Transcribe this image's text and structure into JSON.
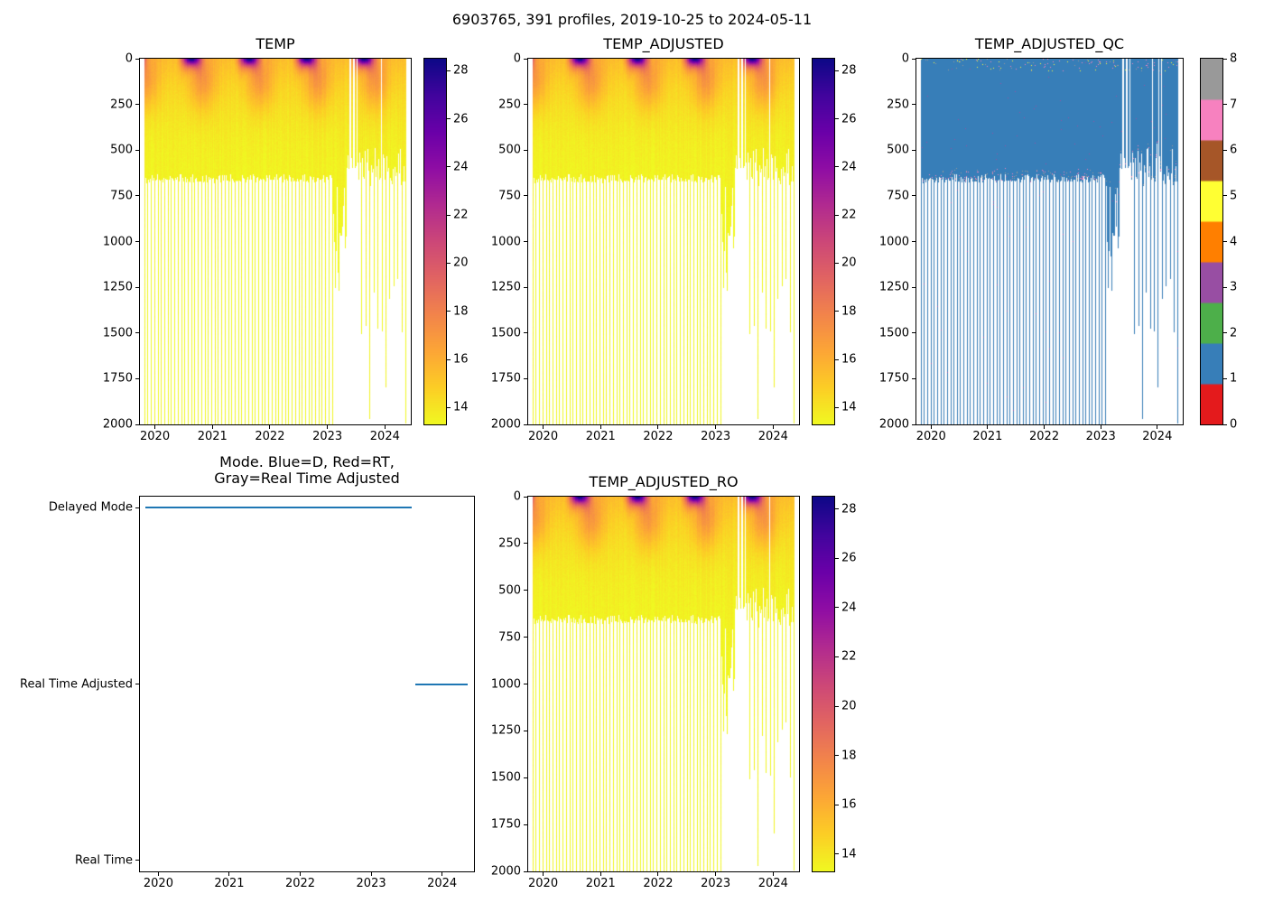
{
  "figure": {
    "title": "6903765, 391 profiles, 2019-10-25 to 2024-05-11",
    "background": "#ffffff",
    "float_id": "6903765",
    "n_profiles": 391,
    "date_start": "2019-10-25",
    "date_end": "2024-05-11"
  },
  "colormap": {
    "name": "plasma_reversed",
    "stops": [
      [
        0.0,
        "#0d0887"
      ],
      [
        0.1,
        "#41049d"
      ],
      [
        0.2,
        "#6a00a8"
      ],
      [
        0.3,
        "#8f0da4"
      ],
      [
        0.4,
        "#b12a90"
      ],
      [
        0.5,
        "#cc4778"
      ],
      [
        0.6,
        "#e16462"
      ],
      [
        0.7,
        "#f2844b"
      ],
      [
        0.8,
        "#fca636"
      ],
      [
        0.9,
        "#fcce25"
      ],
      [
        1.0,
        "#f0f921"
      ]
    ]
  },
  "chart_data": [
    {
      "id": "temp",
      "type": "heatmap",
      "title": "TEMP",
      "xlim": [
        2019.74,
        2024.45
      ],
      "ylim": [
        2000,
        0
      ],
      "xticks": [
        2020,
        2021,
        2022,
        2023,
        2024
      ],
      "yticks": [
        0,
        250,
        500,
        750,
        1000,
        1250,
        1500,
        1750,
        2000
      ],
      "colorbar": {
        "vmin": 13.3,
        "vmax": 28.5,
        "ticks": [
          14,
          16,
          18,
          20,
          22,
          24,
          26,
          28
        ]
      },
      "n_profiles": 391,
      "time_start_decimal_year": 2019.815,
      "time_end_decimal_year": 2024.36,
      "field_summary": {
        "deep_temp_c": 13.3,
        "winter_surface_temp_c": 15.4,
        "summer_surface_temp_c": 28.5,
        "typical_profile_depth_m": 650,
        "deep_profile_depth_m": 2000,
        "deep_profile_every_n": 5,
        "ragged_deep_period_decimal_years": [
          2023.08,
          2023.33
        ],
        "sparse_period_decimal_years": [
          2023.33,
          2023.58
        ],
        "description": "Seasonal warm surface layer (dark purple ~25-28C in summer, top ~100m), orange 15-17C mid-layer, yellow ~13.5C below 300m; most profiles reach ~650m, every ~5th reaches 2000m; ragged deeper profiles and data gaps after early 2023."
      }
    },
    {
      "id": "temp_adjusted",
      "type": "heatmap",
      "title": "TEMP_ADJUSTED",
      "xlim": [
        2019.74,
        2024.45
      ],
      "ylim": [
        2000,
        0
      ],
      "xticks": [
        2020,
        2021,
        2022,
        2023,
        2024
      ],
      "yticks": [
        0,
        250,
        500,
        750,
        1000,
        1250,
        1500,
        1750,
        2000
      ],
      "colorbar": {
        "vmin": 13.3,
        "vmax": 28.5,
        "ticks": [
          14,
          16,
          18,
          20,
          22,
          24,
          26,
          28
        ]
      },
      "n_profiles": 391,
      "time_start_decimal_year": 2019.815,
      "time_end_decimal_year": 2024.36,
      "field_summary": {
        "description": "Visually identical to TEMP panel."
      }
    },
    {
      "id": "temp_adjusted_qc",
      "type": "heatmap",
      "title": "TEMP_ADJUSTED_QC",
      "xlim": [
        2019.74,
        2024.45
      ],
      "ylim": [
        2000,
        0
      ],
      "xticks": [
        2020,
        2021,
        2022,
        2023,
        2024
      ],
      "yticks": [
        0,
        250,
        500,
        750,
        1000,
        1250,
        1500,
        1750,
        2000
      ],
      "colorbar": {
        "vmin": 0,
        "vmax": 8,
        "ticks": [
          0,
          1,
          2,
          3,
          4,
          5,
          6,
          7,
          8
        ],
        "colors": [
          "#e41a1c",
          "#377eb8",
          "#4daf4a",
          "#984ea3",
          "#ff7f00",
          "#ffff33",
          "#a65628",
          "#f781bf",
          "#999999"
        ]
      },
      "dominant_qc_value": 1,
      "dominant_color": "#377eb8",
      "field_summary": {
        "description": "Nearly all samples QC flag 1 (blue); scattered other-flag specks near the surface and near ~650m profile bottoms."
      }
    },
    {
      "id": "mode",
      "type": "line",
      "title_lines": [
        "Mode. Blue=D, Red=RT,",
        "Gray=Real Time Adjusted"
      ],
      "xlim": [
        2019.74,
        2024.45
      ],
      "xticks": [
        2020,
        2021,
        2022,
        2023,
        2024
      ],
      "categories": [
        "Real Time",
        "Real Time Adjusted",
        "Delayed Mode"
      ],
      "line_color": "#1f77b4",
      "segments": [
        {
          "category": "Delayed Mode",
          "x_start": 2019.815,
          "x_end": 2023.57
        },
        {
          "category": "Real Time Adjusted",
          "x_start": 2023.62,
          "x_end": 2024.36
        }
      ]
    },
    {
      "id": "temp_adjusted_ro",
      "type": "heatmap",
      "title": "TEMP_ADJUSTED_RO",
      "xlim": [
        2019.74,
        2024.45
      ],
      "ylim": [
        2000,
        0
      ],
      "xticks": [
        2020,
        2021,
        2022,
        2023,
        2024
      ],
      "yticks": [
        0,
        250,
        500,
        750,
        1000,
        1250,
        1500,
        1750,
        2000
      ],
      "colorbar": {
        "vmin": 13.3,
        "vmax": 28.5,
        "ticks": [
          14,
          16,
          18,
          20,
          22,
          24,
          26,
          28
        ]
      },
      "n_profiles": 391,
      "time_start_decimal_year": 2019.815,
      "time_end_decimal_year": 2024.36,
      "field_summary": {
        "description": "Visually identical to TEMP panel."
      }
    }
  ]
}
